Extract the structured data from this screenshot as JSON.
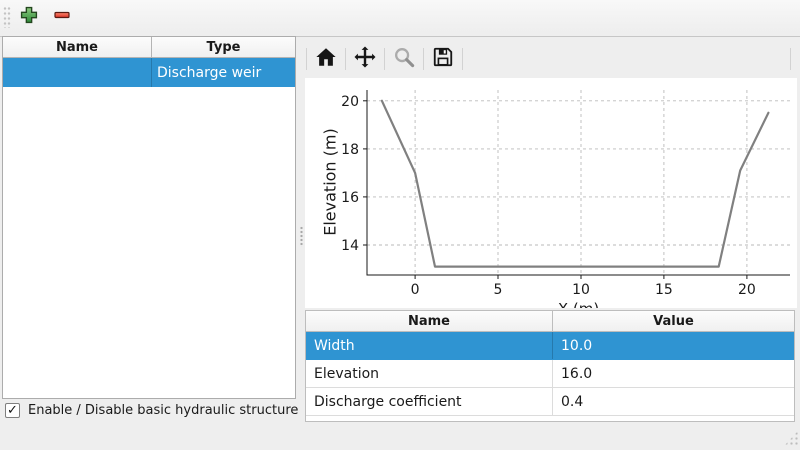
{
  "colors": {
    "selection_blue": "#2f94d2",
    "window_bg": "#eeeeee",
    "panel_bg": "#ffffff",
    "chart_line_gray": "#808080",
    "add_button_green": "#3f9b47",
    "remove_button_red": "#e8442e"
  },
  "main_toolbar": {
    "icons": [
      "add-icon",
      "remove-icon"
    ]
  },
  "structures_panel": {
    "columns": [
      "Name",
      "Type"
    ],
    "rows": [
      {
        "name": "",
        "type": "Discharge weir",
        "selected": true
      }
    ]
  },
  "chart_toolbar": {
    "icons": [
      "home-icon",
      "pan-icon",
      "zoom-icon",
      "save-icon"
    ]
  },
  "chart_data": {
    "type": "line",
    "x": [
      -2.0,
      0.0,
      1.2,
      18.3,
      19.6,
      21.3
    ],
    "y": [
      20.0,
      17.0,
      13.1,
      13.1,
      17.1,
      19.5
    ],
    "title": "",
    "xlabel": "X (m)",
    "ylabel": "Elevation (m)",
    "xlim": [
      -2.9,
      22.6
    ],
    "ylim": [
      12.75,
      20.45
    ],
    "xticks": [
      0,
      5,
      10,
      15,
      20
    ],
    "yticks": [
      14,
      16,
      18,
      20
    ],
    "grid": true,
    "grid_style": "dashed",
    "legend": false,
    "line_color": "#808080",
    "line_width": 2.2
  },
  "properties_panel": {
    "columns": [
      "Name",
      "Value"
    ],
    "rows": [
      {
        "name": "Width",
        "value": "10.0",
        "selected": true
      },
      {
        "name": "Elevation",
        "value": "16.0",
        "selected": false
      },
      {
        "name": "Discharge coefficient",
        "value": "0.4",
        "selected": false
      }
    ]
  },
  "footer": {
    "checkbox_label": "Enable / Disable basic hydraulic structure",
    "checked": true,
    "check_glyph": "✓"
  }
}
